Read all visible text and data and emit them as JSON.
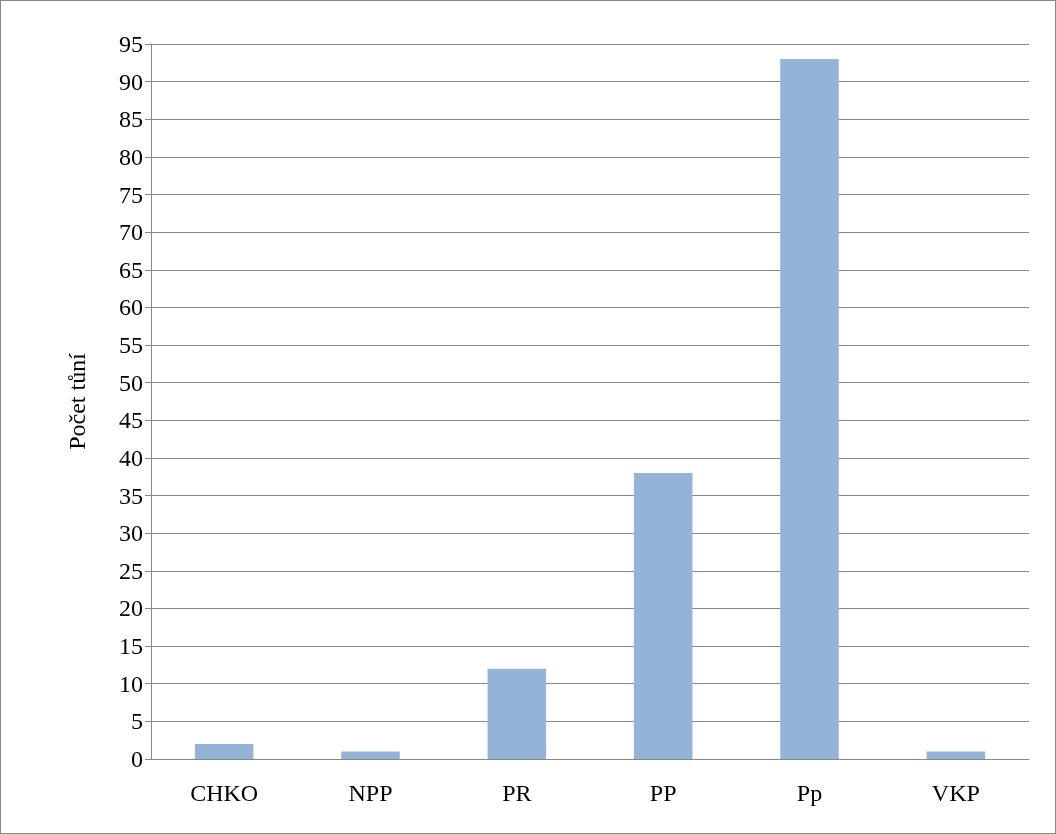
{
  "chart_data": {
    "type": "bar",
    "ylabel": "Počet tůní",
    "categories": [
      "CHKO",
      "NPP",
      "PR",
      "PP",
      "Pp",
      "VKP"
    ],
    "values": [
      2,
      1,
      12,
      38,
      93,
      1
    ],
    "color": "#95b3d7",
    "ylim": [
      0,
      95
    ],
    "yticks": [
      0,
      5,
      10,
      15,
      20,
      25,
      30,
      35,
      40,
      45,
      50,
      55,
      60,
      65,
      70,
      75,
      80,
      85,
      90,
      95
    ],
    "grid": "y"
  }
}
